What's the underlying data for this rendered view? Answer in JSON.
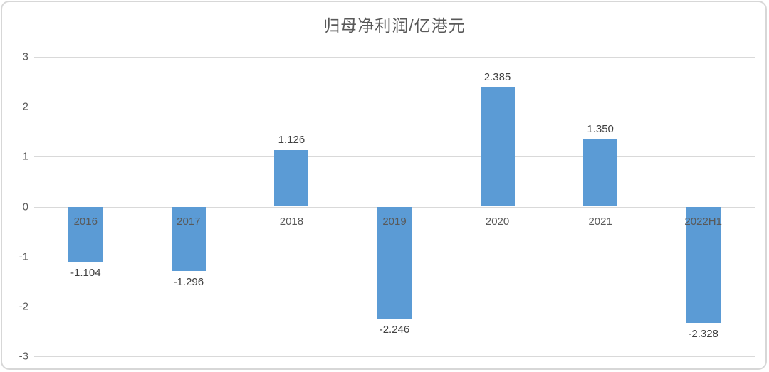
{
  "chart_data": {
    "type": "bar",
    "title": "归母净利润/亿港元",
    "xlabel": "",
    "ylabel": "",
    "categories": [
      "2016",
      "2017",
      "2018",
      "2019",
      "2020",
      "2021",
      "2022H1"
    ],
    "values": [
      -1.104,
      -1.296,
      1.126,
      -2.246,
      2.385,
      1.35,
      -2.328
    ],
    "value_labels": [
      "-1.104",
      "-1.296",
      "1.126",
      "-2.246",
      "2.385",
      "1.350",
      "-2.328"
    ],
    "ylim": [
      -3,
      3
    ],
    "yticks": [
      3,
      2,
      1,
      0,
      -1,
      -2,
      -3
    ],
    "ytick_labels": [
      "3",
      "2",
      "1",
      "0",
      "-1",
      "-2",
      "-3"
    ],
    "grid": true,
    "legend": false,
    "colors": {
      "bar": "#5b9bd5",
      "gridline": "#d9d9d9",
      "frame_border": "#d7d7d7",
      "title_text": "#595959",
      "tick_text": "#595959",
      "category_text": "#595959",
      "value_text": "#404040",
      "background": "#ffffff"
    }
  }
}
